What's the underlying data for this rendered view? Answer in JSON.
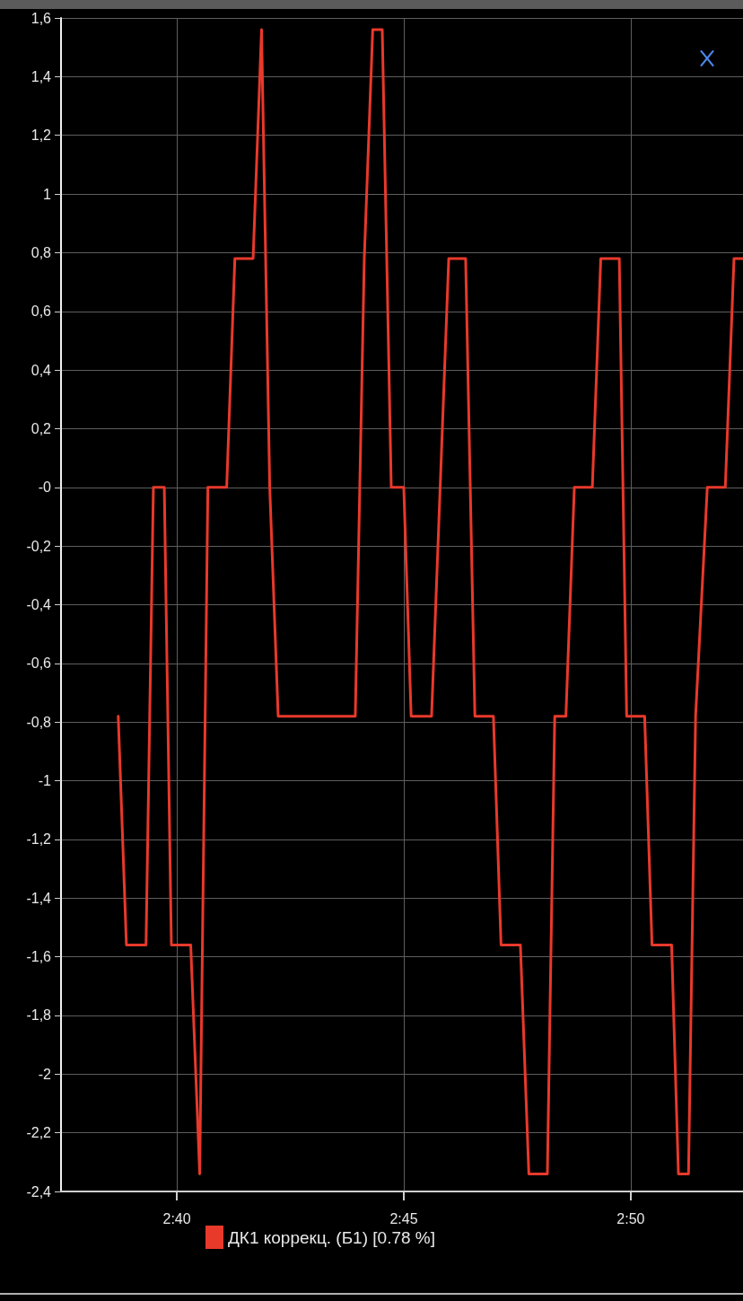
{
  "chart_data": {
    "type": "line",
    "x": [
      2.6452,
      2.6482,
      2.6554,
      2.6581,
      2.6621,
      2.6647,
      2.6718,
      2.6751,
      2.6781,
      2.685,
      2.688,
      2.6947,
      2.6978,
      2.7008,
      2.7039,
      2.7322,
      2.7355,
      2.7386,
      2.7421,
      2.7454,
      2.75,
      2.7527,
      2.7602,
      2.7665,
      2.7727,
      2.7761,
      2.7829,
      2.7857,
      2.7928,
      2.7959,
      2.8027,
      2.8054,
      2.8095,
      2.8126,
      2.8192,
      2.8223,
      2.8291,
      2.8318,
      2.8384,
      2.8411,
      2.8483,
      2.8508,
      2.8545,
      2.8571,
      2.8614,
      2.868,
      2.8712,
      2.8745
    ],
    "series": [
      {
        "name": "ДК1 коррекц. (Б1) [0.78 %]",
        "color": "#e8392b",
        "values": [
          -0.78,
          -1.56,
          -1.56,
          0,
          0,
          -1.56,
          -1.56,
          -2.34,
          0,
          0,
          0.78,
          0.78,
          1.56,
          0,
          -0.78,
          -0.78,
          0.78,
          1.56,
          1.56,
          0,
          0,
          -0.78,
          -0.78,
          0.78,
          0.78,
          -0.78,
          -0.78,
          -1.56,
          -1.56,
          -2.34,
          -2.34,
          -0.78,
          -0.78,
          0,
          0,
          0.78,
          0.78,
          -0.78,
          -0.78,
          -1.56,
          -1.56,
          -2.34,
          -2.34,
          -0.78,
          0,
          0,
          0.78,
          0.78
        ]
      }
    ],
    "xlim": [
      2.6242,
      2.8745
    ],
    "xticks": [
      {
        "value": 2.6667,
        "label": "2:40"
      },
      {
        "value": 2.75,
        "label": "2:45"
      },
      {
        "value": 2.8333,
        "label": "2:50"
      }
    ],
    "ylim": [
      -2.4,
      1.6
    ],
    "yticks": [
      {
        "value": -2.4,
        "label": "-2,4"
      },
      {
        "value": -2.2,
        "label": "-2,2"
      },
      -2,
      {
        "value": -1.8,
        "label": "-1,8"
      },
      {
        "value": -1.6,
        "label": "-1,6"
      },
      {
        "value": -1.4,
        "label": "-1,4"
      },
      {
        "value": -1.2,
        "label": "-1,2"
      },
      -1,
      {
        "value": -0.8,
        "label": "-0,8"
      },
      {
        "value": -0.6,
        "label": "-0,6"
      },
      {
        "value": -0.4,
        "label": "-0,4"
      },
      {
        "value": -0.2,
        "label": "-0,2"
      },
      {
        "value": 0,
        "label": "-0"
      },
      {
        "value": 0.2,
        "label": "0,2"
      },
      {
        "value": 0.4,
        "label": "0,4"
      },
      {
        "value": 0.6,
        "label": "0,6"
      },
      {
        "value": 0.8,
        "label": "0,8"
      },
      1,
      {
        "value": 1.2,
        "label": "1,2"
      },
      {
        "value": 1.4,
        "label": "1,4"
      },
      {
        "value": 1.6,
        "label": "1,6"
      }
    ],
    "grid": true,
    "legend": "bottom",
    "marker": "none",
    "line_style": "solid"
  }
}
